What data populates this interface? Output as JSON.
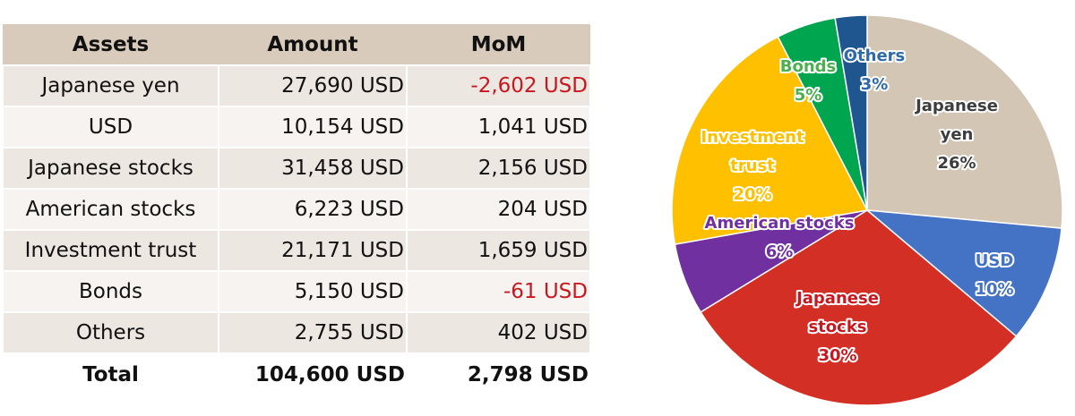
{
  "table": {
    "headers": [
      "Assets",
      "Amount",
      "MoM"
    ],
    "rows": [
      {
        "asset": "Japanese yen",
        "amount": "27,690 USD",
        "mom": "-2,602 USD",
        "negative": true
      },
      {
        "asset": "USD",
        "amount": "10,154 USD",
        "mom": "1,041 USD",
        "negative": false
      },
      {
        "asset": "Japanese stocks",
        "amount": "31,458 USD",
        "mom": "2,156 USD",
        "negative": false
      },
      {
        "asset": "American stocks",
        "amount": "6,223 USD",
        "mom": "204 USD",
        "negative": false
      },
      {
        "asset": "Investment trust",
        "amount": "21,171 USD",
        "mom": "1,659 USD",
        "negative": false
      },
      {
        "asset": "Bonds",
        "amount": "5,150 USD",
        "mom": "-61 USD",
        "negative": true
      },
      {
        "asset": "Others",
        "amount": "2,755 USD",
        "mom": "402 USD",
        "negative": false
      }
    ],
    "total": {
      "asset": "Total",
      "amount": "104,600 USD",
      "mom": "2,798 USD"
    },
    "colors": {
      "header_bg": "#d8cbbb",
      "row_odd": "#ede7e1",
      "row_even": "#f6f3f0",
      "negative": "#c8171e"
    }
  },
  "chart_data": {
    "type": "pie",
    "start": "12 o'clock",
    "direction": "clockwise",
    "slices": [
      {
        "label_lines": [
          "Japanese",
          "yen"
        ],
        "percent_label": "26%",
        "value": 27690,
        "color": "#d3c6b5",
        "label_color": "#3d3d3d"
      },
      {
        "label_lines": [
          "USD"
        ],
        "percent_label": "10%",
        "value": 10154,
        "color": "#4472c4",
        "label_color": "#4472c4"
      },
      {
        "label_lines": [
          "Japanese",
          "stocks"
        ],
        "percent_label": "30%",
        "value": 31458,
        "color": "#d42f24",
        "label_color": "#c8171e"
      },
      {
        "label_lines": [
          "American stocks"
        ],
        "percent_label": "6%",
        "value": 6223,
        "color": "#7030a0",
        "label_color": "#7030a0"
      },
      {
        "label_lines": [
          "Investment",
          "trust"
        ],
        "percent_label": "20%",
        "value": 21171,
        "color": "#ffc000",
        "label_color": "#ffc000"
      },
      {
        "label_lines": [
          "Bonds"
        ],
        "percent_label": "5%",
        "value": 5150,
        "color": "#00a550",
        "label_color": "#4caf50"
      },
      {
        "label_lines": [
          "Others"
        ],
        "percent_label": "3%",
        "value": 2755,
        "color": "#1f5690",
        "label_color": "#2e6aa8"
      }
    ]
  }
}
